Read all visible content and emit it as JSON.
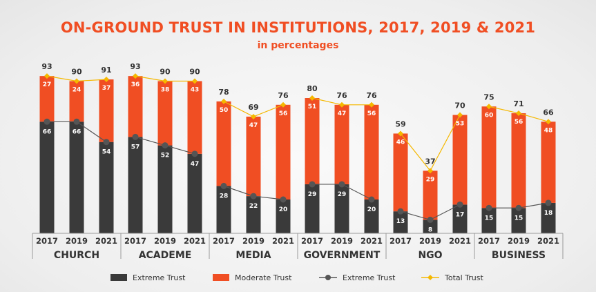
{
  "chart_data": {
    "type": "bar",
    "title": "ON-GROUND TRUST IN INSTITUTIONS, 2017, 2019 & 2021",
    "subtitle": "in percentages",
    "groups": [
      {
        "name": "CHURCH",
        "years": [
          "2017",
          "2019",
          "2021"
        ],
        "extreme": [
          66,
          66,
          54
        ],
        "moderate": [
          27,
          24,
          37
        ],
        "total": [
          93,
          90,
          91
        ]
      },
      {
        "name": "ACADEME",
        "years": [
          "2017",
          "2019",
          "2021"
        ],
        "extreme": [
          57,
          52,
          47
        ],
        "moderate": [
          36,
          38,
          43
        ],
        "total": [
          93,
          90,
          90
        ]
      },
      {
        "name": "MEDIA",
        "years": [
          "2017",
          "2019",
          "2021"
        ],
        "extreme": [
          28,
          22,
          20
        ],
        "moderate": [
          50,
          47,
          56
        ],
        "total": [
          78,
          69,
          76
        ]
      },
      {
        "name": "GOVERNMENT",
        "years": [
          "2017",
          "2019",
          "2021"
        ],
        "extreme": [
          29,
          29,
          20
        ],
        "moderate": [
          51,
          47,
          56
        ],
        "total": [
          80,
          76,
          76
        ]
      },
      {
        "name": "NGO",
        "years": [
          "2017",
          "2019",
          "2021"
        ],
        "extreme": [
          13,
          8,
          17
        ],
        "moderate": [
          46,
          29,
          53
        ],
        "total": [
          59,
          37,
          70
        ]
      },
      {
        "name": "BUSINESS",
        "years": [
          "2017",
          "2019",
          "2021"
        ],
        "extreme": [
          15,
          15,
          18
        ],
        "moderate": [
          60,
          56,
          48
        ],
        "total": [
          75,
          71,
          66
        ]
      }
    ],
    "legend": [
      "Extreme Trust",
      "Moderate Trust",
      "Extreme Trust",
      "Total Trust"
    ],
    "colors": {
      "extreme": "#3a3a3a",
      "moderate": "#f04e23",
      "extreme_line": "#555555",
      "total_line": "#f5b800",
      "title": "#f04e23"
    },
    "ylim": [
      0,
      100
    ]
  }
}
